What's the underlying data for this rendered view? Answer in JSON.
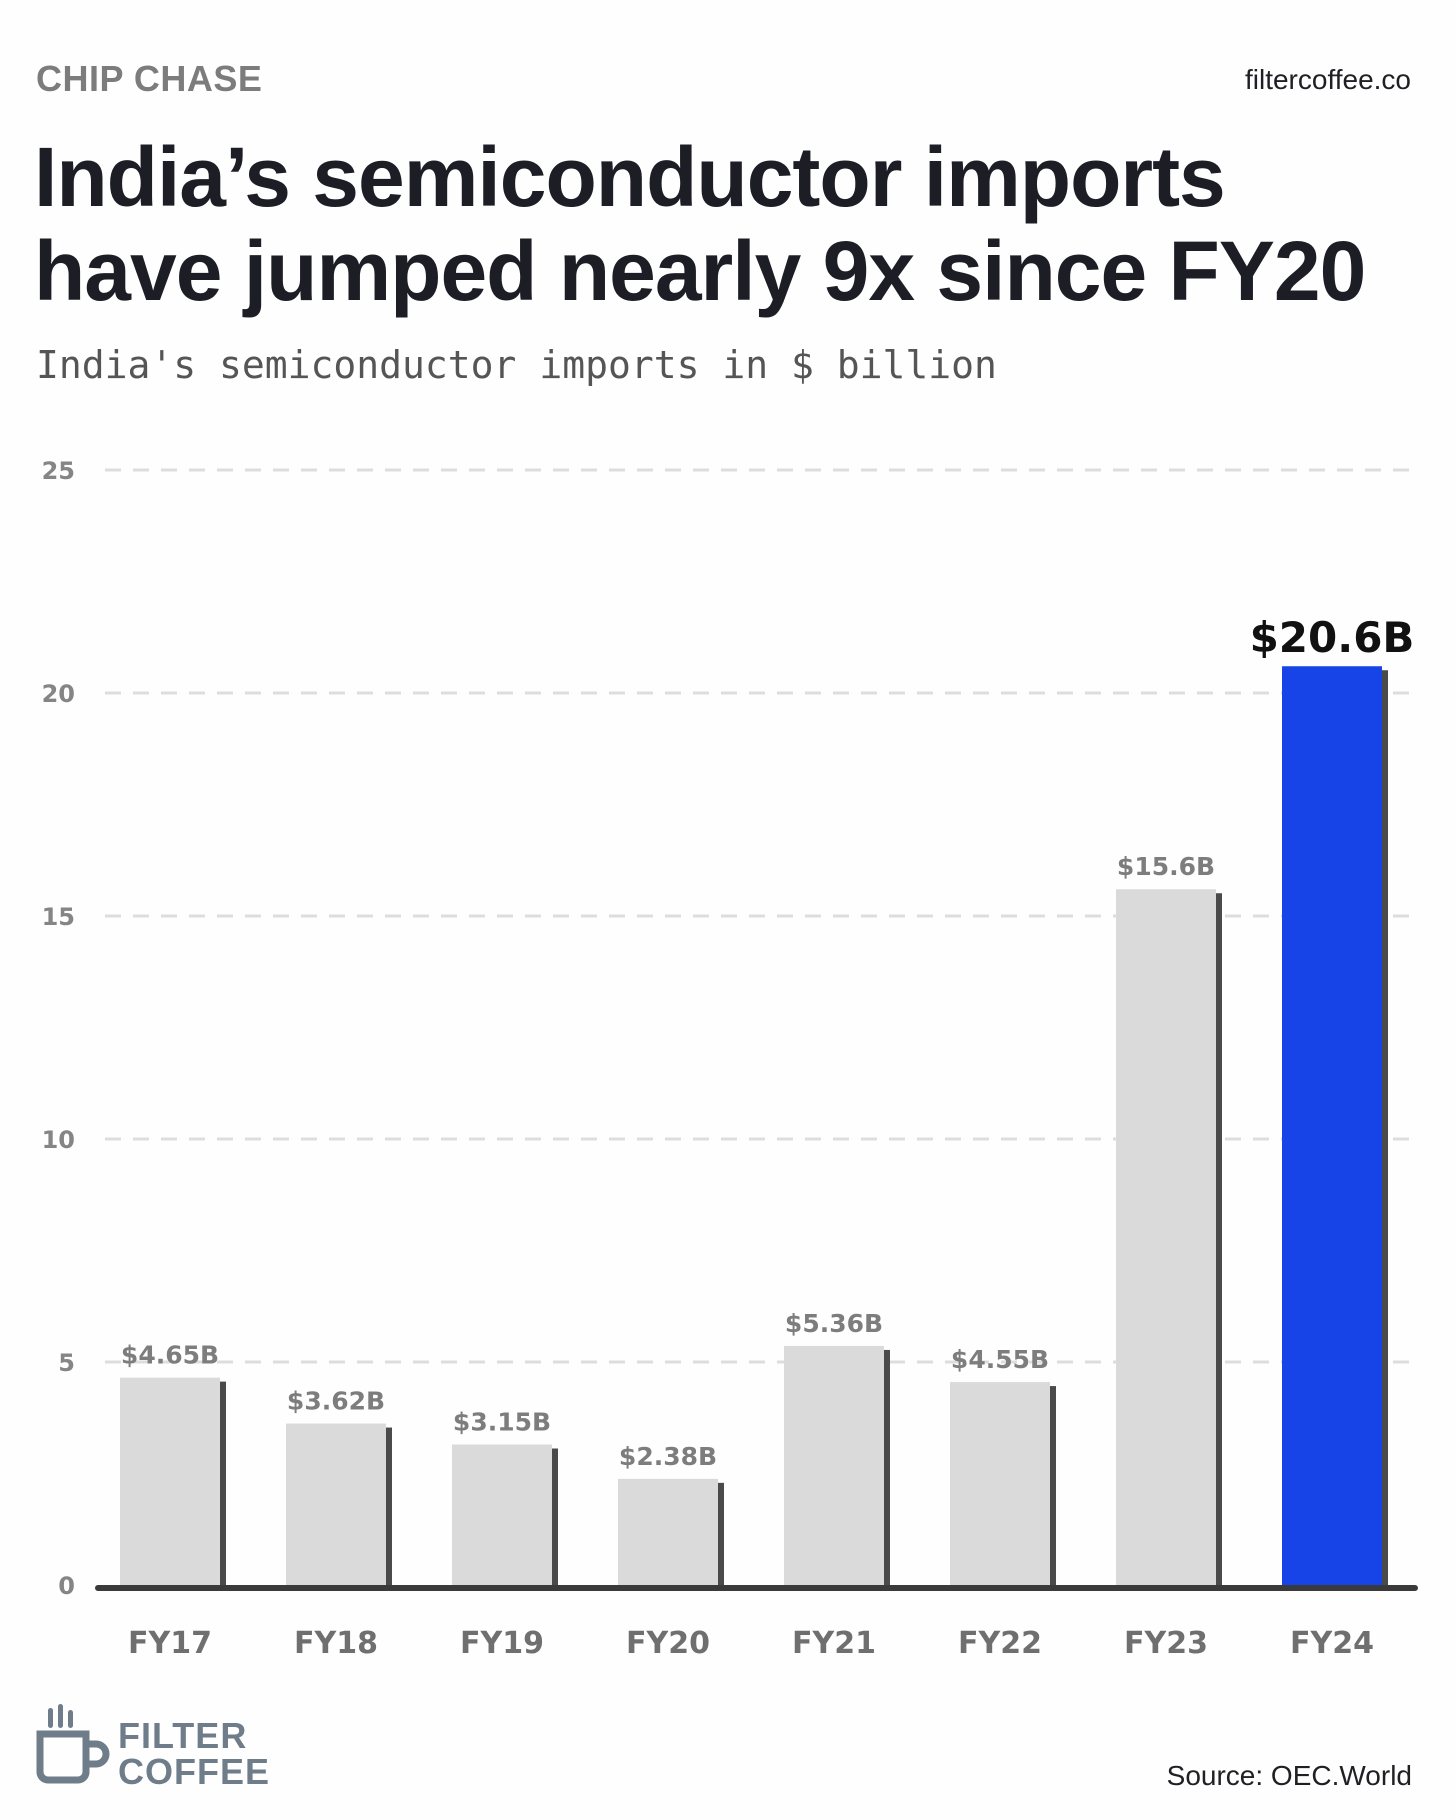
{
  "header": {
    "kicker": "CHIP CHASE",
    "site": "filtercoffee.co",
    "title_line1": "India’s semiconductor imports",
    "title_line2": "have jumped nearly 9x since FY20",
    "subtitle": "India's semiconductor imports in $ billion"
  },
  "footer": {
    "logo_line1": "FILTER",
    "logo_line2": "COFFEE",
    "source": "Source: OEC.World"
  },
  "colors": {
    "bar": "#dadada",
    "highlight": "#1744e6",
    "shadow": "#4a4a4a",
    "axis": "#3a3a3a",
    "grid": "#dddddd"
  },
  "chart_data": {
    "type": "bar",
    "categories": [
      "FY17",
      "FY18",
      "FY19",
      "FY20",
      "FY21",
      "FY22",
      "FY23",
      "FY24"
    ],
    "values": [
      4.65,
      3.62,
      3.15,
      2.38,
      5.36,
      4.55,
      15.6,
      20.6
    ],
    "labels": [
      "$4.65B",
      "$3.62B",
      "$3.15B",
      "$2.38B",
      "$5.36B",
      "$4.55B",
      "$15.6B",
      "$20.6B"
    ],
    "highlight_index": 7,
    "ylim": [
      0,
      25
    ],
    "yticks": [
      0,
      5,
      10,
      15,
      20,
      25
    ],
    "grid": true,
    "legend": "none"
  }
}
